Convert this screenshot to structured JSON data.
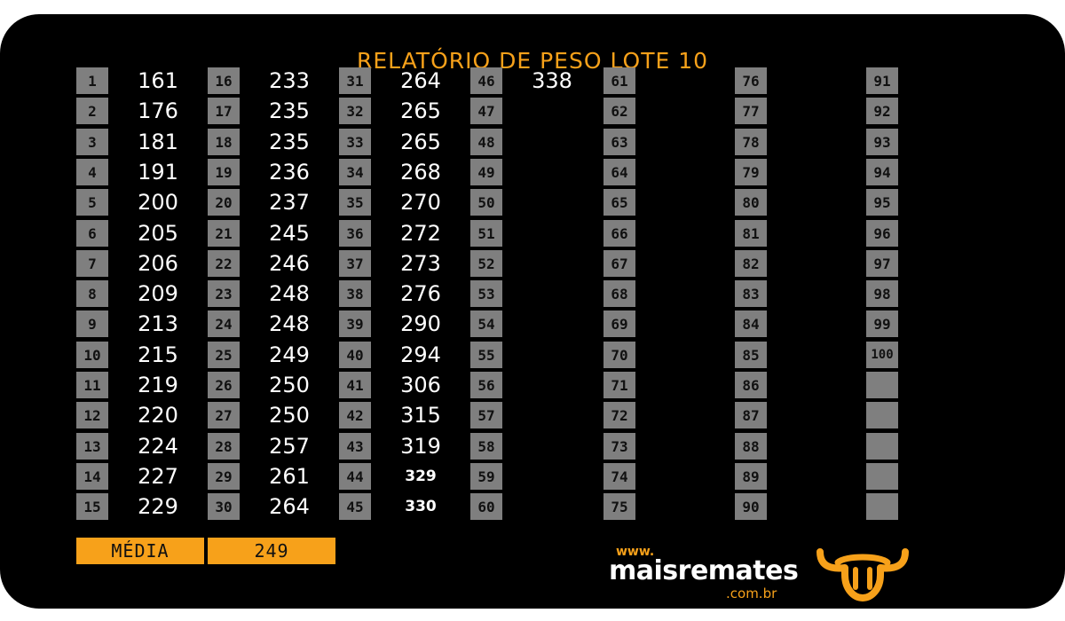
{
  "report": {
    "title": "RELATÓRIO DE PESO LOTE  10",
    "columns": [
      {
        "numbers": [
          "1",
          "2",
          "3",
          "4",
          "5",
          "6",
          "7",
          "8",
          "9",
          "10",
          "11",
          "12",
          "13",
          "14",
          "15"
        ],
        "weights": [
          "161",
          "176",
          "181",
          "191",
          "200",
          "205",
          "206",
          "209",
          "213",
          "215",
          "219",
          "220",
          "224",
          "227",
          "229"
        ]
      },
      {
        "numbers": [
          "16",
          "17",
          "18",
          "19",
          "20",
          "21",
          "22",
          "23",
          "24",
          "25",
          "26",
          "27",
          "28",
          "29",
          "30"
        ],
        "weights": [
          "233",
          "235",
          "235",
          "236",
          "237",
          "245",
          "246",
          "248",
          "248",
          "249",
          "250",
          "250",
          "257",
          "261",
          "264"
        ]
      },
      {
        "numbers": [
          "31",
          "32",
          "33",
          "34",
          "35",
          "36",
          "37",
          "38",
          "39",
          "40",
          "41",
          "42",
          "43",
          "44",
          "45"
        ],
        "weights": [
          "264",
          "265",
          "265",
          "268",
          "270",
          "272",
          "273",
          "276",
          "290",
          "294",
          "306",
          "315",
          "319",
          "329",
          "330"
        ]
      },
      {
        "numbers": [
          "46",
          "47",
          "48",
          "49",
          "50",
          "51",
          "52",
          "53",
          "54",
          "55",
          "56",
          "57",
          "58",
          "59",
          "60"
        ],
        "weights": [
          "338",
          "",
          "",
          "",
          "",
          "",
          "",
          "",
          "",
          "",
          "",
          "",
          "",
          "",
          ""
        ]
      },
      {
        "numbers": [
          "61",
          "62",
          "63",
          "64",
          "65",
          "66",
          "67",
          "68",
          "69",
          "70",
          "71",
          "72",
          "73",
          "74",
          "75"
        ],
        "weights": []
      },
      {
        "numbers": [
          "76",
          "77",
          "78",
          "79",
          "80",
          "81",
          "82",
          "83",
          "84",
          "85",
          "86",
          "87",
          "88",
          "89",
          "90"
        ],
        "weights": []
      },
      {
        "numbers": [
          "91",
          "92",
          "93",
          "94",
          "95",
          "96",
          "97",
          "98",
          "99",
          "100",
          "",
          "",
          "",
          "",
          ""
        ],
        "weights": []
      }
    ],
    "average_label": "MÉDIA",
    "average_value": "249"
  },
  "brand": {
    "www": "www.",
    "name": "maisremates",
    "domain": ".com.br",
    "accent_color": "#f7a11a",
    "icon": "bull-head-icon"
  }
}
